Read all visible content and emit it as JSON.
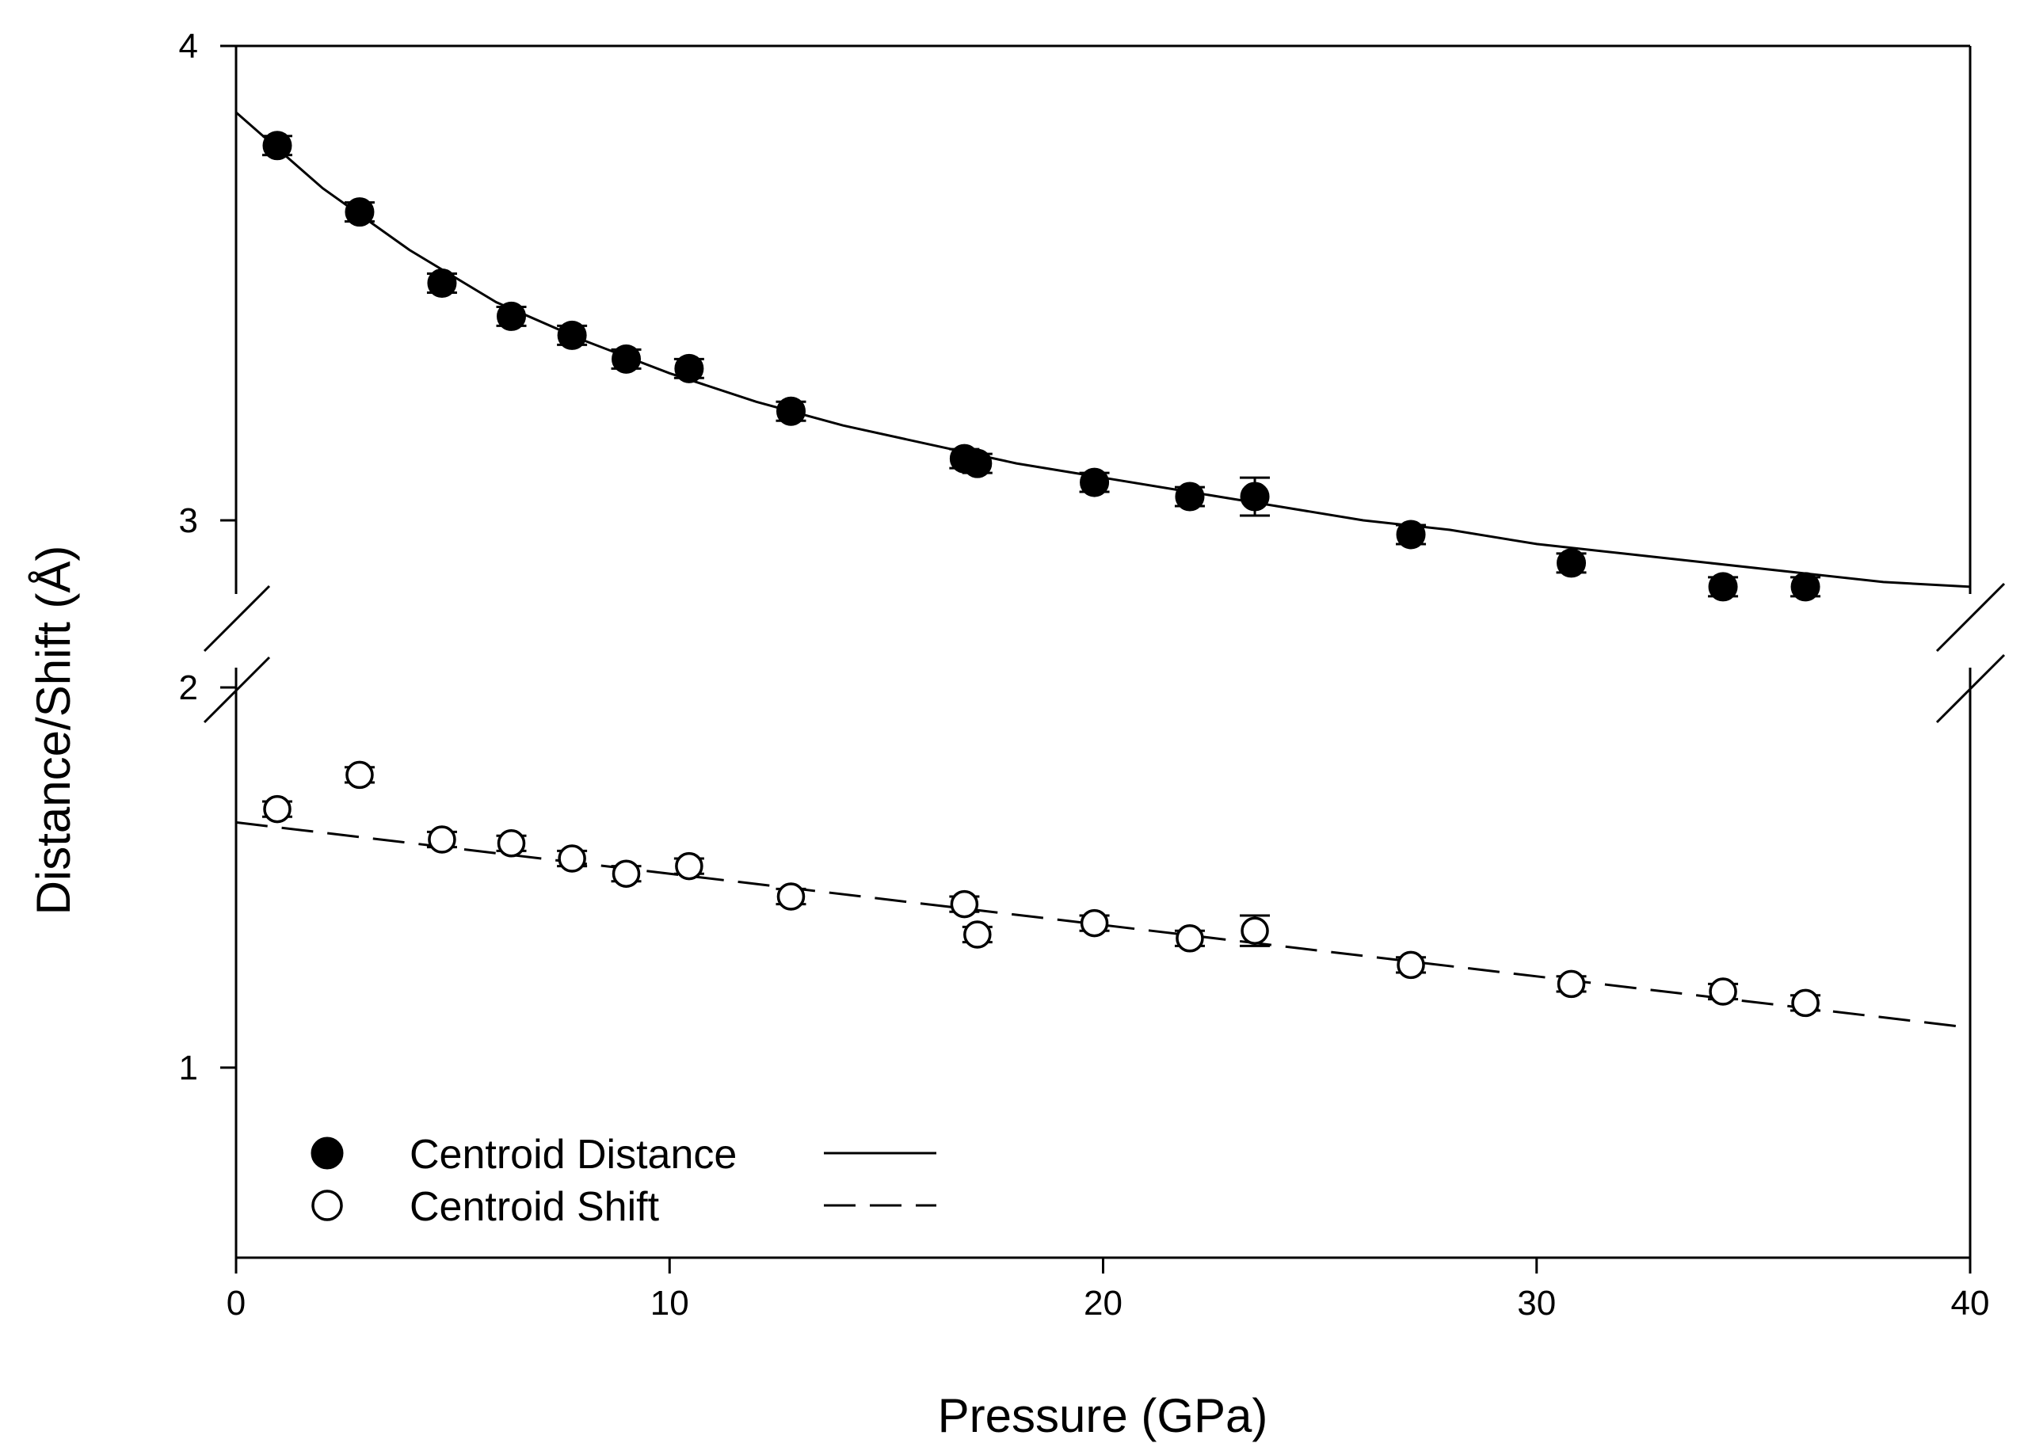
{
  "chart_data": {
    "type": "scatter",
    "title": "",
    "xlabel": "Pressure (GPa)",
    "ylabel": "Distance/Shift (Å)",
    "xlim": [
      0,
      40
    ],
    "ylim_upper": [
      2.85,
      4
    ],
    "ylim_lower": [
      0.5,
      2
    ],
    "axis_break": "between 2 and ~2.85 on the y axis",
    "x_ticks": [
      0,
      10,
      20,
      30,
      40
    ],
    "x_tick_labels": [
      "0",
      "10",
      "20",
      "30",
      "40"
    ],
    "y_ticks": [
      1,
      2,
      3,
      4
    ],
    "y_tick_labels": [
      "1",
      "2",
      "3",
      "4"
    ],
    "grid": false,
    "legend_position": "bottom-left",
    "series": [
      {
        "name": "Centroid Distance",
        "marker": "filled-circle",
        "line_style": "solid",
        "x": [
          0.95,
          2.85,
          4.75,
          6.35,
          7.75,
          9.0,
          10.45,
          12.8,
          16.8,
          17.1,
          19.8,
          22.0,
          23.5,
          27.1,
          30.8,
          34.3,
          36.2
        ],
        "y": [
          3.79,
          3.65,
          3.5,
          3.43,
          3.39,
          3.34,
          3.32,
          3.23,
          3.13,
          3.12,
          3.08,
          3.05,
          3.05,
          2.97,
          2.91,
          2.86,
          2.86
        ],
        "yerr": [
          0.02,
          0.02,
          0.02,
          0.02,
          0.02,
          0.02,
          0.02,
          0.02,
          0.02,
          0.02,
          0.02,
          0.02,
          0.04,
          0.02,
          0.02,
          0.02,
          0.02
        ],
        "fit_curve": {
          "x": [
            0,
            2,
            4,
            6,
            8,
            10,
            12,
            14,
            16,
            18,
            20,
            22,
            24,
            26,
            28,
            30,
            32,
            34,
            36,
            38,
            40
          ],
          "y": [
            3.86,
            3.7,
            3.57,
            3.46,
            3.38,
            3.31,
            3.25,
            3.2,
            3.16,
            3.12,
            3.09,
            3.06,
            3.03,
            3.0,
            2.98,
            2.95,
            2.93,
            2.91,
            2.89,
            2.87,
            2.86
          ]
        }
      },
      {
        "name": "Centroid Shift",
        "marker": "open-circle",
        "line_style": "dashed",
        "x": [
          0.95,
          2.85,
          4.75,
          6.35,
          7.75,
          9.0,
          10.45,
          12.8,
          16.8,
          17.1,
          19.8,
          22.0,
          23.5,
          27.1,
          30.8,
          34.3,
          36.2
        ],
        "y": [
          1.68,
          1.77,
          1.6,
          1.59,
          1.55,
          1.51,
          1.53,
          1.45,
          1.43,
          1.35,
          1.38,
          1.34,
          1.36,
          1.27,
          1.22,
          1.2,
          1.17
        ],
        "yerr": [
          0.02,
          0.02,
          0.02,
          0.02,
          0.02,
          0.02,
          0.02,
          0.02,
          0.02,
          0.02,
          0.02,
          0.02,
          0.04,
          0.02,
          0.02,
          0.02,
          0.02
        ],
        "fit_line": {
          "x": [
            0,
            40
          ],
          "y": [
            1.645,
            1.105
          ]
        }
      }
    ]
  },
  "legend": {
    "items": [
      {
        "label": "Centroid Distance"
      },
      {
        "label": "Centroid Shift"
      }
    ]
  }
}
